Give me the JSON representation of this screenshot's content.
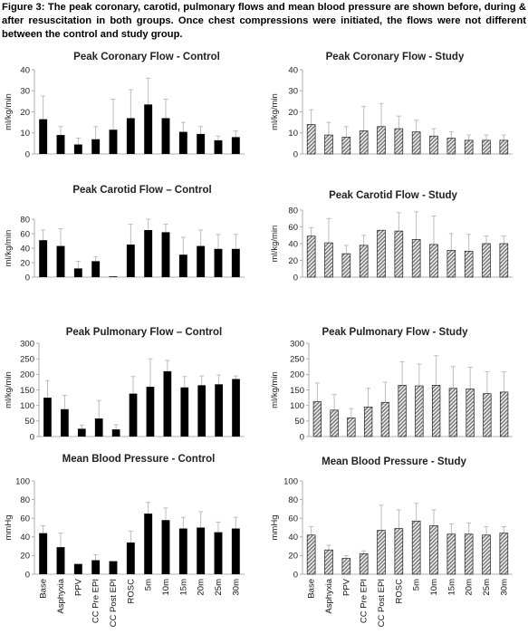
{
  "caption": "Figure 3: The peak coronary, carotid, pulmonary flows and mean blood pressure are shown before, during & after resuscitation in both groups. Once chest compressions were initiated, the flows were not different between the control and study group.",
  "colors": {
    "control_bar": "#000000",
    "study_bar_fill": "#8f8f8f",
    "study_bar_stripe": "#ffffff",
    "axis": "#9a9a9a",
    "error_bar": "#b5b5b5"
  },
  "chart_data": [
    {
      "type": "bar",
      "id": "coronary-control",
      "title": "Peak Coronary Flow - Control",
      "ylabel": "ml/kg/min",
      "ylim": [
        0,
        40
      ],
      "yticks": [
        0,
        10,
        20,
        30,
        40
      ],
      "grid": false,
      "pattern": "solid",
      "categories": [
        "Base",
        "Asphyxia",
        "PPV",
        "CC Pre EPI",
        "CC Post EPI",
        "ROSC",
        "5m",
        "10m",
        "15m",
        "20m",
        "25m",
        "30m"
      ],
      "values": [
        16.5,
        9,
        4.5,
        7,
        11.5,
        17,
        23.5,
        17,
        10.5,
        9.5,
        6.5,
        8
      ],
      "errors": [
        11,
        4,
        3,
        6,
        14.5,
        13.5,
        12.5,
        9,
        4.5,
        3.5,
        2,
        3
      ]
    },
    {
      "type": "bar",
      "id": "coronary-study",
      "title": "Peak Coronary Flow - Study",
      "ylabel": "ml/kg/min",
      "ylim": [
        0,
        40
      ],
      "yticks": [
        0,
        10,
        20,
        30,
        40
      ],
      "grid": false,
      "pattern": "hatched",
      "categories": [
        "Base",
        "Asphyxia",
        "PPV",
        "CC Pre EPI",
        "CC Post EPI",
        "ROSC",
        "5m",
        "10m",
        "15m",
        "20m",
        "25m",
        "30m"
      ],
      "values": [
        14,
        9,
        8,
        11,
        13,
        12,
        10.5,
        8.5,
        7.5,
        6.5,
        6.5,
        6.5
      ],
      "errors": [
        7,
        6,
        5,
        11.5,
        11,
        6,
        5.5,
        3.5,
        3,
        2.5,
        2.5,
        2.5
      ]
    },
    {
      "type": "bar",
      "id": "carotid-control",
      "title": "Peak Carotid Flow – Control",
      "ylabel": "ml/kg/min",
      "ylim": [
        0,
        80
      ],
      "yticks": [
        0,
        20,
        40,
        60,
        80
      ],
      "grid": false,
      "pattern": "solid",
      "categories": [
        "Base",
        "Asphyxia",
        "PPV",
        "CC Pre EPI",
        "CC Post EPI",
        "ROSC",
        "5m",
        "10m",
        "15m",
        "20m",
        "25m",
        "30m"
      ],
      "values": [
        51,
        43,
        12,
        22,
        1,
        45,
        65,
        62,
        31,
        43,
        39,
        39
      ],
      "errors": [
        14,
        24,
        10,
        6,
        0,
        28,
        15,
        11,
        24,
        22,
        20,
        20
      ]
    },
    {
      "type": "bar",
      "id": "carotid-study",
      "title": "Peak Carotid Flow - Study",
      "ylabel": "ml/kg/min",
      "ylim": [
        0,
        80
      ],
      "yticks": [
        0,
        20,
        40,
        60,
        80
      ],
      "grid": false,
      "pattern": "hatched",
      "categories": [
        "Base",
        "Asphyxia",
        "PPV",
        "CC Pre EPI",
        "CC Post EPI",
        "ROSC",
        "5m",
        "10m",
        "15m",
        "20m",
        "25m",
        "30m"
      ],
      "values": [
        49,
        41,
        28,
        38,
        56,
        55,
        45,
        39,
        32,
        31,
        40,
        40
      ],
      "errors": [
        10,
        29,
        10,
        12,
        0,
        22,
        33,
        34,
        20,
        20,
        9,
        9
      ]
    },
    {
      "type": "bar",
      "id": "pulmonary-control",
      "title": "Peak Pulmonary Flow – Control",
      "ylabel": "ml/kg/min",
      "ylim": [
        0,
        300
      ],
      "yticks": [
        0,
        50,
        100,
        150,
        200,
        250,
        300
      ],
      "grid": false,
      "pattern": "solid",
      "categories": [
        "Base",
        "Asphyxia",
        "PPV",
        "CC Pre EPI",
        "CC Post EPI",
        "ROSC",
        "5m",
        "10m",
        "15m",
        "20m",
        "25m",
        "30m"
      ],
      "values": [
        125,
        88,
        25,
        58,
        23,
        138,
        160,
        210,
        158,
        165,
        168,
        185
      ],
      "errors": [
        55,
        45,
        12,
        58,
        15,
        55,
        90,
        35,
        35,
        30,
        30,
        10
      ]
    },
    {
      "type": "bar",
      "id": "pulmonary-study",
      "title": "Peak Pulmonary Flow - Study",
      "ylabel": "ml/kg/min",
      "ylim": [
        0,
        300
      ],
      "yticks": [
        0,
        50,
        100,
        150,
        200,
        250,
        300
      ],
      "grid": false,
      "pattern": "hatched",
      "categories": [
        "Base",
        "Asphyxia",
        "PPV",
        "CC Pre EPI",
        "CC Post EPI",
        "ROSC",
        "5m",
        "10m",
        "15m",
        "20m",
        "25m",
        "30m"
      ],
      "values": [
        112,
        85,
        60,
        95,
        110,
        165,
        163,
        165,
        155,
        153,
        138,
        143
      ],
      "errors": [
        60,
        50,
        30,
        60,
        65,
        75,
        70,
        95,
        70,
        70,
        70,
        65
      ]
    },
    {
      "type": "bar",
      "id": "bp-control",
      "title": "Mean Blood Pressure - Control",
      "ylabel": "mmHg",
      "ylim": [
        0,
        100
      ],
      "yticks": [
        0,
        20,
        40,
        60,
        80,
        100
      ],
      "grid": false,
      "pattern": "solid",
      "categories": [
        "Base",
        "Asphyxia",
        "PPV",
        "CC Pre EPI",
        "CC Post EPI",
        "ROSC",
        "5m",
        "10m",
        "15m",
        "20m",
        "25m",
        "30m"
      ],
      "values": [
        44,
        29,
        11,
        15,
        14,
        34,
        65,
        58,
        49,
        50,
        45,
        49
      ],
      "errors": [
        8,
        15,
        0,
        6,
        0,
        12,
        12,
        13,
        12,
        17,
        11,
        12
      ]
    },
    {
      "type": "bar",
      "id": "bp-study",
      "title": "Mean Blood Pressure - Study",
      "ylabel": "mmHg",
      "ylim": [
        0,
        100
      ],
      "yticks": [
        0,
        20,
        40,
        60,
        80,
        100
      ],
      "grid": false,
      "pattern": "hatched",
      "categories": [
        "Base",
        "Asphyxia",
        "PPV",
        "CC Pre EPI",
        "CC Post EPI",
        "ROSC",
        "5m",
        "10m",
        "15m",
        "20m",
        "25m",
        "30m"
      ],
      "values": [
        42,
        26,
        17,
        22,
        47,
        49,
        57,
        52,
        43,
        43,
        42,
        44
      ],
      "errors": [
        9,
        5,
        3,
        3,
        27,
        20,
        19,
        17,
        11,
        12,
        9,
        7
      ]
    }
  ]
}
